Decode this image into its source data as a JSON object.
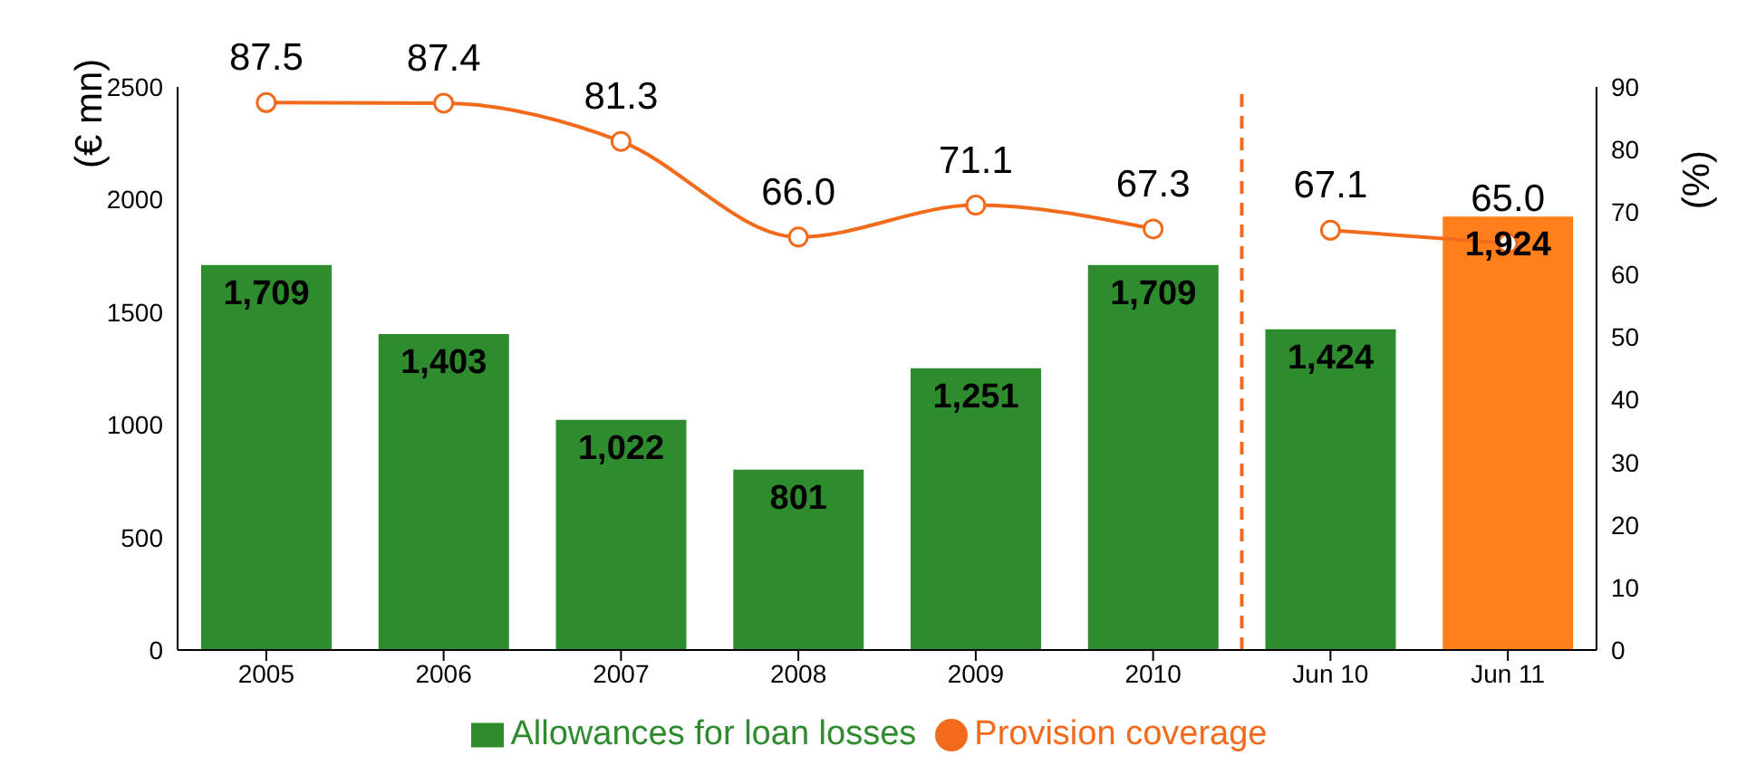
{
  "chart_data": {
    "type": "bar",
    "categories": [
      "2005",
      "2006",
      "2007",
      "2008",
      "2009",
      "2010",
      "Jun 10",
      "Jun 11"
    ],
    "series": [
      {
        "name": "Allowances for loan losses",
        "color": "#2e8b2e",
        "colors": [
          "#2e8b2e",
          "#2e8b2e",
          "#2e8b2e",
          "#2e8b2e",
          "#2e8b2e",
          "#2e8b2e",
          "#2e8b2e",
          "#ff7f1a"
        ],
        "values": [
          1709,
          1403,
          1022,
          801,
          1251,
          1709,
          1424,
          1924
        ],
        "value_labels": [
          "1,709",
          "1,403",
          "1,022",
          "801",
          "1,251",
          "1,709",
          "1,424",
          "1,924"
        ]
      },
      {
        "type": "line",
        "name": "Provision coverage",
        "color": "#f26a1b",
        "axis": "y2",
        "values": [
          87.5,
          87.4,
          81.3,
          66.0,
          71.1,
          67.3,
          67.1,
          65.0
        ],
        "value_labels": [
          "87.5",
          "87.4",
          "81.3",
          "66.0",
          "71.1",
          "67.3",
          "67.1",
          "65.0"
        ]
      }
    ],
    "ylabel": "(€ mn)",
    "y2label": "(%)",
    "ylim": [
      0,
      2500
    ],
    "yticks": [
      0,
      500,
      1000,
      1500,
      2000,
      2500
    ],
    "y2lim": [
      0,
      90
    ],
    "y2ticks": [
      0,
      10,
      20,
      30,
      40,
      50,
      60,
      70,
      80,
      90
    ],
    "ref_lines": [
      {
        "axis": "x",
        "value": "Jun 10",
        "color": "#f26a1b",
        "line_style": "dashed"
      }
    ],
    "marker": "circle",
    "legend": "bottom"
  }
}
